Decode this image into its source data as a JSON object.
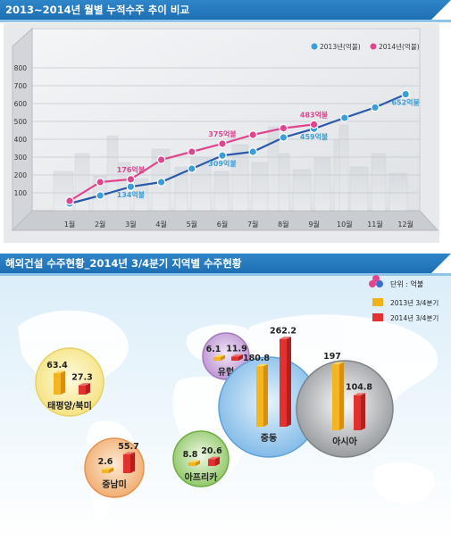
{
  "chart_title": "2013~2014년 월별 누적수주 추이 비교",
  "map_title": "해외건설 수주현황_2014년 3/4분기 지역별 수주현황",
  "legend_unit": "단위 : 억불",
  "chart_data": [
    {
      "type": "line",
      "title": "2013~2014년 월별 누적수주 추이 비교",
      "categories": [
        "1월",
        "2월",
        "3월",
        "4월",
        "5월",
        "6월",
        "7월",
        "8월",
        "9월",
        "10월",
        "11월",
        "12월"
      ],
      "y_ticks": [
        100,
        200,
        300,
        400,
        500,
        600,
        700,
        800
      ],
      "ylim": [
        0,
        880
      ],
      "grid": true,
      "legend": "top-right",
      "series": [
        {
          "name": "2013년(억불)",
          "color": "#3a9fd6",
          "values": [
            40,
            85,
            134,
            160,
            235,
            309,
            330,
            410,
            459,
            520,
            578,
            652
          ]
        },
        {
          "name": "2014년(억불)",
          "color": "#e0458f",
          "values": [
            55,
            160,
            176,
            285,
            330,
            375,
            425,
            462,
            483,
            null,
            null,
            null
          ]
        }
      ],
      "annotations": [
        {
          "series": 1,
          "index": 2,
          "text": "176억불"
        },
        {
          "series": 0,
          "index": 2,
          "text": "134억불"
        },
        {
          "series": 1,
          "index": 5,
          "text": "375억불"
        },
        {
          "series": 0,
          "index": 5,
          "text": "309억불"
        },
        {
          "series": 1,
          "index": 8,
          "text": "483억불"
        },
        {
          "series": 0,
          "index": 8,
          "text": "459억불"
        },
        {
          "series": 0,
          "index": 11,
          "text": "652억불"
        }
      ]
    },
    {
      "type": "bar",
      "title": "해외건설 수주현황_2014년 3/4분기 지역별 수주현황",
      "categories": [
        "태평양/북미",
        "중남미",
        "유럽",
        "아프리카",
        "중동",
        "아시아"
      ],
      "legend": "top-right",
      "series": [
        {
          "name": "2013년 3/4분기",
          "color": "#f2b21c",
          "values": [
            63.4,
            2.6,
            6.1,
            8.8,
            180.8,
            197
          ]
        },
        {
          "name": "2014년 3/4분기",
          "color": "#e2312f",
          "values": [
            27.3,
            55.7,
            11.9,
            20.6,
            262.2,
            104.8
          ]
        }
      ],
      "labels_2013": [
        "63.4",
        "2.6",
        "6.1",
        "8.8",
        "180.8",
        "197"
      ],
      "labels_2014": [
        "27.3",
        "55.7",
        "11.9",
        "20.6",
        "262.2",
        "104.8"
      ]
    }
  ]
}
